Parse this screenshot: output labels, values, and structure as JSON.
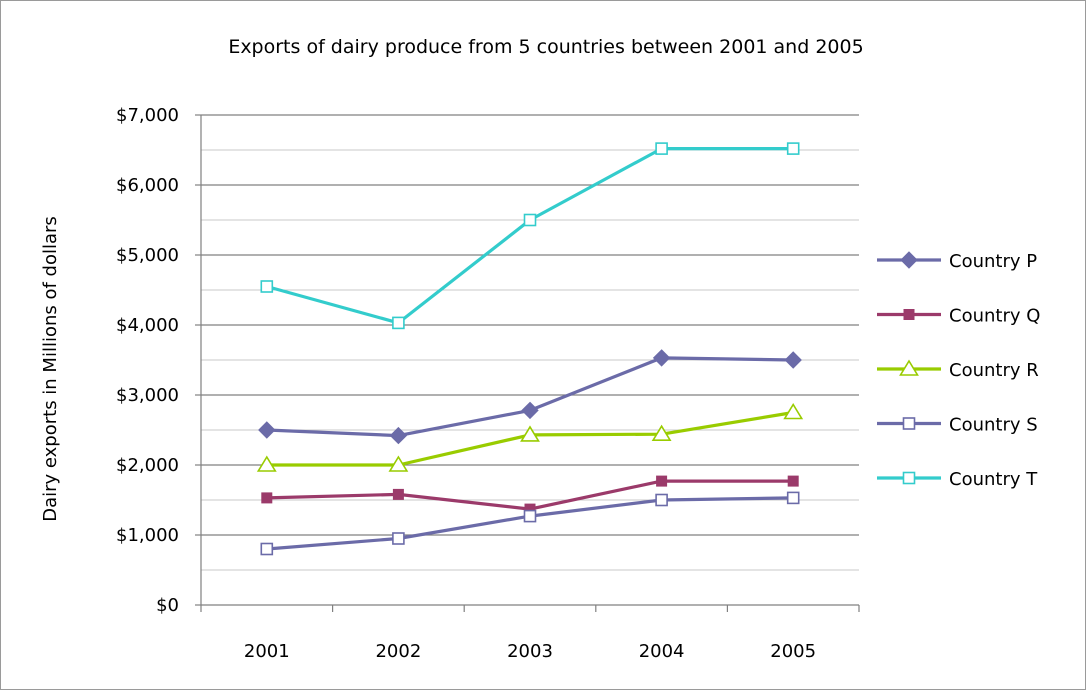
{
  "chart_data": {
    "type": "line",
    "title": "Exports of dairy produce from 5 countries between 2001 and 2005",
    "xlabel": "",
    "ylabel": "Dairy  exports in Millions of dollars",
    "categories": [
      "2001",
      "2002",
      "2003",
      "2004",
      "2005"
    ],
    "ylim": [
      0,
      7000
    ],
    "y_ticks": [
      0,
      1000,
      2000,
      3000,
      4000,
      5000,
      6000,
      7000
    ],
    "y_tick_labels": [
      "$0",
      "$1,000",
      "$2,000",
      "$3,000",
      "$4,000",
      "$5,000",
      "$6,000",
      "$7,000"
    ],
    "grid": true,
    "legend_position": "right",
    "series": [
      {
        "name": "Country P",
        "values": [
          2500,
          2420,
          2780,
          3530,
          3500
        ],
        "color": "#6B6BA8",
        "marker": "diamond-filled"
      },
      {
        "name": "Country Q",
        "values": [
          1530,
          1580,
          1370,
          1770,
          1770
        ],
        "color": "#9B3A6A",
        "marker": "square-filled"
      },
      {
        "name": "Country R",
        "values": [
          2000,
          2000,
          2430,
          2440,
          2750
        ],
        "color": "#99CC00",
        "marker": "triangle-open"
      },
      {
        "name": "Country S",
        "values": [
          800,
          950,
          1270,
          1500,
          1530
        ],
        "color": "#6B6BA8",
        "marker": "square-open"
      },
      {
        "name": "Country T",
        "values": [
          4550,
          4030,
          5500,
          6520,
          6520
        ],
        "color": "#33CCCC",
        "marker": "square-open"
      }
    ]
  }
}
